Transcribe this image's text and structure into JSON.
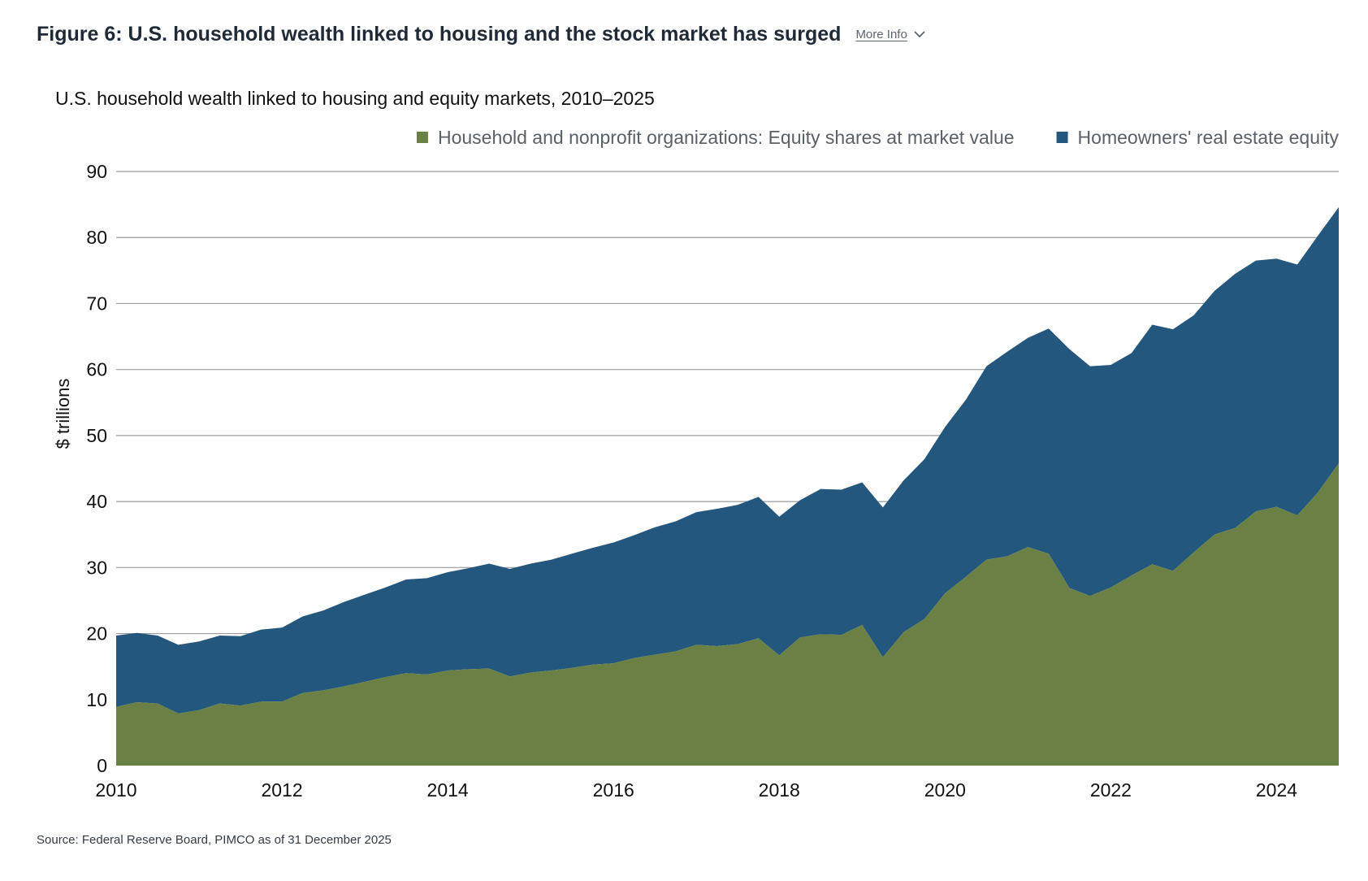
{
  "header": {
    "title": "Figure 6: U.S. household wealth linked to housing and the stock market has surged",
    "more_info_label": "More Info"
  },
  "chart_data": {
    "type": "area",
    "title": "U.S. household wealth linked to housing and equity markets, 2010–2025",
    "ylabel": "$ trillions",
    "xlabel": "",
    "stacked": true,
    "ylim": [
      0,
      90
    ],
    "xlim": [
      2010,
      2024.75
    ],
    "yticks": [
      "0",
      "10",
      "20",
      "30",
      "40",
      "50",
      "60",
      "70",
      "80",
      "90"
    ],
    "xticks": [
      "2010",
      "2012",
      "2014",
      "2016",
      "2018",
      "2020",
      "2022",
      "2024"
    ],
    "legend_position": "top-right",
    "grid": true,
    "x": [
      2010.0,
      2010.25,
      2010.5,
      2010.75,
      2011.0,
      2011.25,
      2011.5,
      2011.75,
      2012.0,
      2012.25,
      2012.5,
      2012.75,
      2013.0,
      2013.25,
      2013.5,
      2013.75,
      2014.0,
      2014.25,
      2014.5,
      2014.75,
      2015.0,
      2015.25,
      2015.5,
      2015.75,
      2016.0,
      2016.25,
      2016.5,
      2016.75,
      2017.0,
      2017.25,
      2017.5,
      2017.75,
      2018.0,
      2018.25,
      2018.5,
      2018.75,
      2019.0,
      2019.25,
      2019.5,
      2019.75,
      2020.0,
      2020.25,
      2020.5,
      2020.75,
      2021.0,
      2021.25,
      2021.5,
      2021.75,
      2022.0,
      2022.25,
      2022.5,
      2022.75,
      2023.0,
      2023.25,
      2023.5,
      2023.75,
      2024.0,
      2024.25,
      2024.5,
      2024.75
    ],
    "series": [
      {
        "name": "Household and nonprofit organizations: Equity shares at market value",
        "color": "#6a8045",
        "values": [
          8.9,
          9.6,
          9.4,
          7.9,
          8.4,
          9.4,
          9.1,
          9.7,
          9.7,
          11.0,
          11.4,
          12.0,
          12.7,
          13.4,
          14.0,
          13.8,
          14.4,
          14.6,
          14.7,
          13.5,
          14.1,
          14.4,
          14.8,
          15.3,
          15.5,
          16.3,
          16.8,
          17.3,
          18.3,
          18.1,
          18.4,
          19.3,
          16.7,
          19.4,
          19.9,
          19.8,
          21.3,
          16.4,
          20.2,
          22.2,
          26.1,
          28.6,
          31.2,
          31.7,
          33.1,
          32.1,
          26.9,
          25.7,
          27.0,
          28.8,
          30.5,
          29.5,
          32.3,
          35.0,
          36.0,
          38.5,
          39.2,
          37.9,
          41.4,
          45.8
        ]
      },
      {
        "name": "Homeowners' real estate equity",
        "color": "#23577d",
        "values": [
          10.8,
          10.5,
          10.3,
          10.4,
          10.4,
          10.3,
          10.5,
          10.9,
          11.2,
          11.6,
          12.1,
          12.8,
          13.2,
          13.6,
          14.2,
          14.6,
          14.9,
          15.3,
          15.9,
          16.3,
          16.5,
          16.8,
          17.3,
          17.7,
          18.3,
          18.6,
          19.3,
          19.7,
          20.1,
          20.8,
          21.1,
          21.4,
          21.0,
          20.8,
          22.0,
          22.0,
          21.6,
          22.7,
          23.0,
          24.2,
          25.2,
          26.8,
          29.3,
          31.0,
          31.7,
          34.1,
          36.2,
          34.8,
          33.7,
          33.7,
          36.3,
          36.6,
          35.9,
          36.9,
          38.5,
          38.0,
          37.6,
          38.0,
          38.9,
          38.8
        ]
      }
    ]
  },
  "source": "Source: Federal Reserve Board, PIMCO as of 31 December 2025"
}
